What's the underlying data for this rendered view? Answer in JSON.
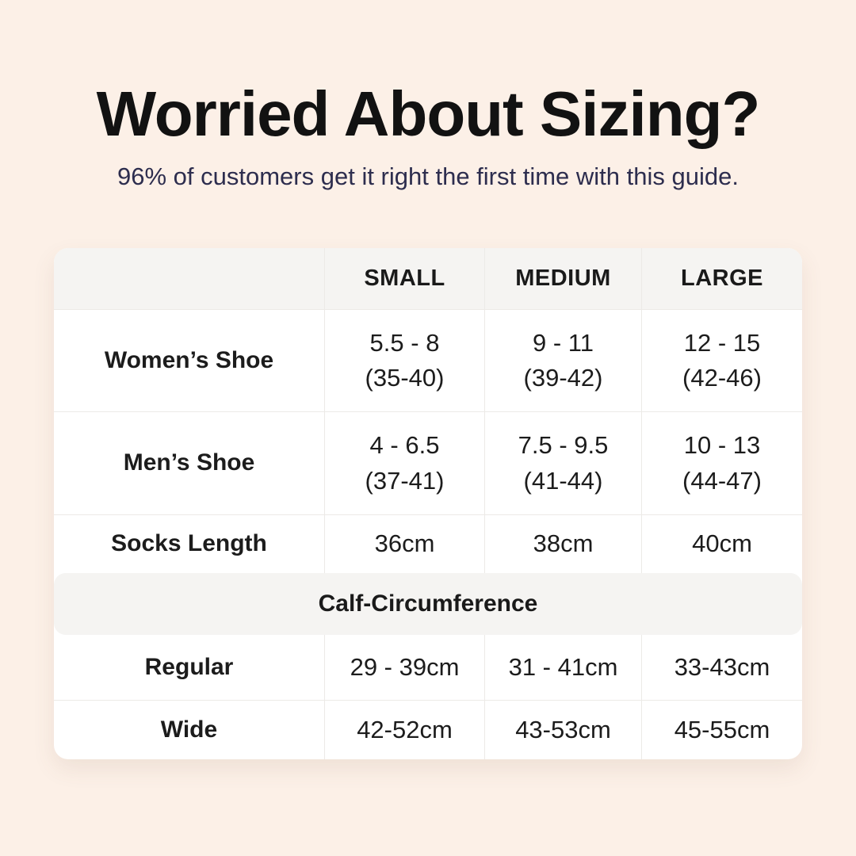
{
  "colors": {
    "background": "#fcf0e7",
    "panel": "#ffffff",
    "band": "#f5f4f2",
    "border": "#eceae7",
    "title_text": "#121212",
    "subtitle_text": "#2d2d4e",
    "table_text": "#1c1c1c"
  },
  "header": {
    "title": "Worried About Sizing?",
    "subtitle": "96% of customers get it right the first time with this guide."
  },
  "chart_data": {
    "type": "table",
    "title": "Worried About Sizing?",
    "columns": [
      "",
      "SMALL",
      "MEDIUM",
      "LARGE"
    ],
    "rows": [
      {
        "label": "Women’s Shoe",
        "cells": [
          [
            "5.5 - 8",
            "(35-40)"
          ],
          [
            "9 - 11",
            "(39-42)"
          ],
          [
            "12 - 15",
            "(42-46)"
          ]
        ]
      },
      {
        "label": "Men’s Shoe",
        "cells": [
          [
            "4 - 6.5",
            "(37-41)"
          ],
          [
            "7.5 - 9.5",
            "(41-44)"
          ],
          [
            "10 - 13",
            "(44-47)"
          ]
        ]
      },
      {
        "label": "Socks Length",
        "cells": [
          [
            "36cm"
          ],
          [
            "38cm"
          ],
          [
            "40cm"
          ]
        ]
      }
    ],
    "section_header": "Calf-Circumference",
    "section_rows": [
      {
        "label": "Regular",
        "cells": [
          [
            "29 - 39cm"
          ],
          [
            "31 - 41cm"
          ],
          [
            "33-43cm"
          ]
        ]
      },
      {
        "label": "Wide",
        "cells": [
          [
            "42-52cm"
          ],
          [
            "43-53cm"
          ],
          [
            "45-55cm"
          ]
        ]
      }
    ]
  }
}
